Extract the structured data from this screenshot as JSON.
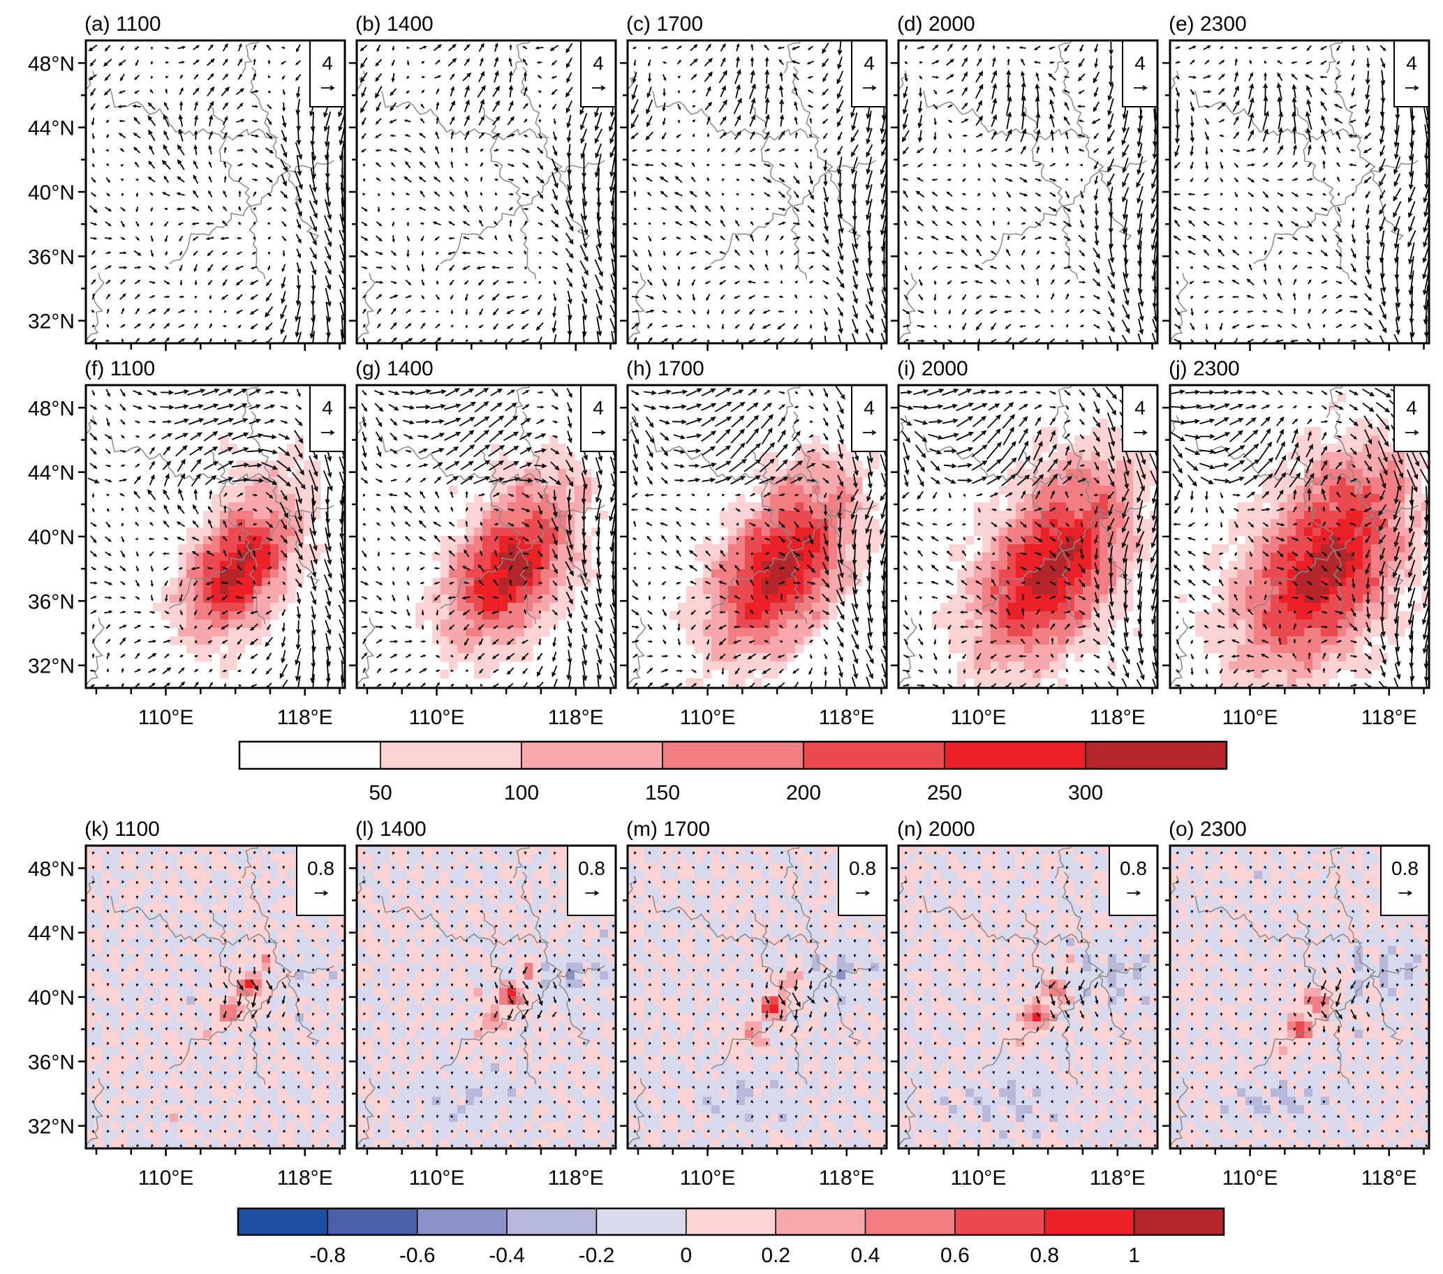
{
  "figure": {
    "rows": [
      {
        "panels": [
          {
            "label": "(a) 1100"
          },
          {
            "label": "(b) 1400"
          },
          {
            "label": "(c) 1700"
          },
          {
            "label": "(d) 2000"
          },
          {
            "label": "(e) 2300"
          }
        ],
        "ref_vector": "4",
        "shading": "none",
        "show_lon_labels": false
      },
      {
        "panels": [
          {
            "label": "(f) 1100"
          },
          {
            "label": "(g) 1400"
          },
          {
            "label": "(h) 1700"
          },
          {
            "label": "(i) 2000"
          },
          {
            "label": "(j) 2300"
          }
        ],
        "ref_vector": "4",
        "shading": "colorbar_1",
        "show_lon_labels": true
      },
      {
        "panels": [
          {
            "label": "(k) 1100"
          },
          {
            "label": "(l) 1400"
          },
          {
            "label": "(m) 1700"
          },
          {
            "label": "(n) 2000"
          },
          {
            "label": "(o) 2300"
          }
        ],
        "ref_vector": "0.8",
        "shading": "colorbar_2",
        "show_lon_labels": true
      }
    ],
    "lat_ticks": [
      "48°N",
      "44°N",
      "40°N",
      "36°N",
      "32°N"
    ],
    "lat_tick_values": [
      48,
      44,
      40,
      36,
      32
    ],
    "lon_ticks": [
      "110°E",
      "118°E"
    ],
    "lon_tick_values": [
      110,
      118
    ],
    "extent": {
      "lon": [
        105.4,
        120.3
      ],
      "lat": [
        30.6,
        49.4
      ]
    },
    "colorbar_1": {
      "labels": [
        "50",
        "100",
        "150",
        "200",
        "250",
        "300"
      ],
      "levels": [
        50,
        100,
        150,
        200,
        250,
        300
      ],
      "colors": [
        "#fffcfd",
        "#fcd3d5",
        "#f7a8ac",
        "#f07e82",
        "#ec4a51",
        "#ec2127",
        "#b5262b"
      ]
    },
    "colorbar_2": {
      "labels": [
        "-0.8",
        "-0.6",
        "-0.4",
        "-0.2",
        "0",
        "0.2",
        "0.4",
        "0.6",
        "0.8",
        "1"
      ],
      "levels": [
        -0.8,
        -0.6,
        -0.4,
        -0.2,
        0,
        0.2,
        0.4,
        0.6,
        0.8,
        1
      ],
      "colors": [
        "#1e4fa3",
        "#4c60aa",
        "#8a92c8",
        "#b6b8dc",
        "#d8d9ec",
        "#fcd3d5",
        "#f7a8ac",
        "#f07e82",
        "#ec4a51",
        "#ec2127",
        "#b5262b"
      ]
    }
  }
}
